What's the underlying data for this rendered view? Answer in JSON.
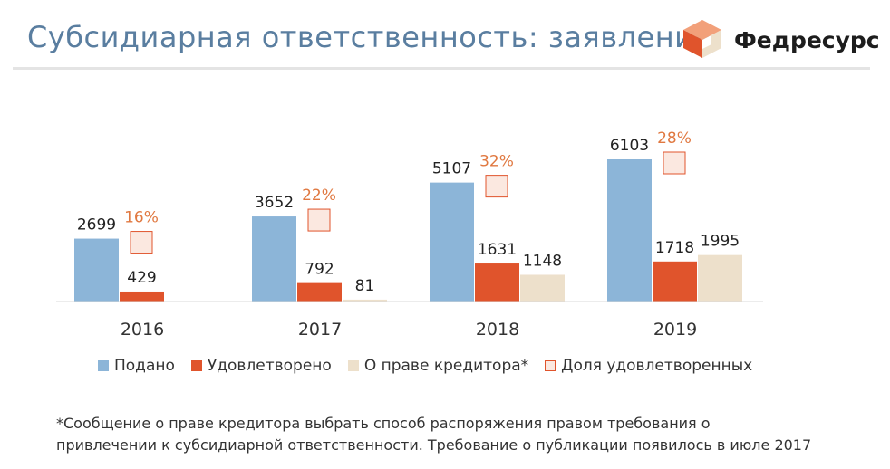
{
  "header": {
    "title": "Субсидиарная ответственность: заявления",
    "brand": "Федресурс"
  },
  "colors": {
    "filed": "#8cb5d8",
    "granted": "#e0542c",
    "creditor": "#ede0cb",
    "share_box_fill": "#fbe8e0",
    "share_box_border": "#e0542c",
    "share_text": "#e07840",
    "title": "#5a7ea0"
  },
  "chart_data": {
    "type": "bar",
    "categories": [
      "2016",
      "2017",
      "2018",
      "2019"
    ],
    "series": [
      {
        "name": "Подано",
        "values": [
          2699,
          3652,
          5107,
          6103
        ]
      },
      {
        "name": "Удовлетворено",
        "values": [
          429,
          792,
          1631,
          1718
        ]
      },
      {
        "name": "О праве кредитора*",
        "values": [
          null,
          81,
          1148,
          1995
        ]
      }
    ],
    "share": {
      "name": "Доля удовлетворенных",
      "values": [
        "16%",
        "22%",
        "32%",
        "28%"
      ]
    },
    "ylim": [
      0,
      6500
    ]
  },
  "legend": [
    {
      "label": "Подано",
      "icon": "filled-square"
    },
    {
      "label": "Удовлетворено",
      "icon": "filled-square"
    },
    {
      "label": "О праве кредитора*",
      "icon": "filled-square"
    },
    {
      "label": "Доля удовлетворенных",
      "icon": "outlined-square"
    }
  ],
  "footnote": {
    "line1": "*Сообщение о праве кредитора выбрать способ распоряжения правом требования о",
    "line2": "привлечении к субсидиарной ответственности. Требование о публикации появилось в июле 2017"
  }
}
